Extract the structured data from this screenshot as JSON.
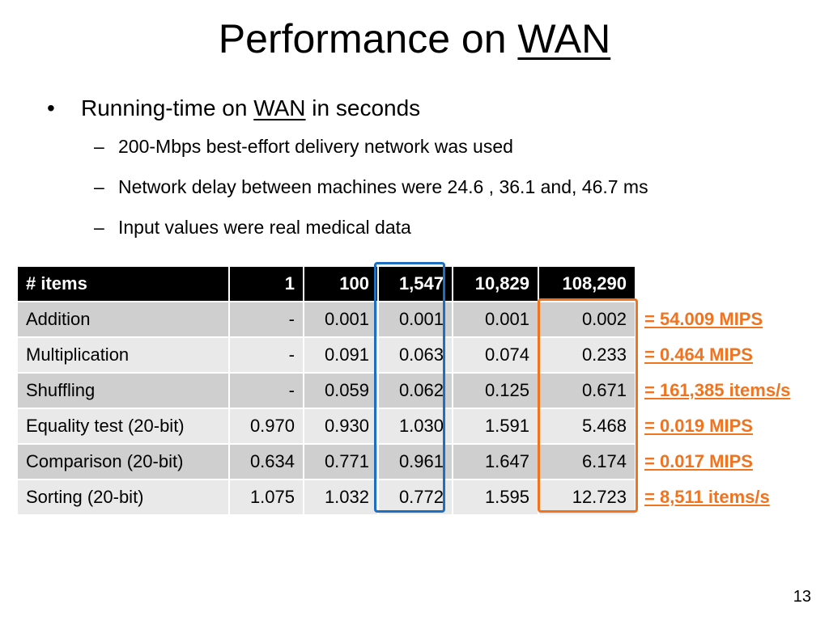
{
  "slide": {
    "title_prefix": "Performance on ",
    "title_underlined": "WAN",
    "page_number": "13"
  },
  "bullets": {
    "main": {
      "prefix": "Running-time on ",
      "underlined": "WAN",
      "suffix": " in seconds"
    },
    "sub": [
      "200-Mbps best-effort delivery network was used",
      "Network delay between machines were 24.6 , 36.1  and, 46.7 ms",
      "Input values were real medical data"
    ]
  },
  "table": {
    "headers": [
      "# items",
      "1",
      "100",
      "1,547",
      "10,829",
      "108,290"
    ],
    "rows": [
      {
        "label": "Addition",
        "values": [
          "-",
          "0.001",
          "0.001",
          "0.001",
          "0.002"
        ],
        "note": "= 54.009 MIPS"
      },
      {
        "label": "Multiplication",
        "values": [
          "-",
          "0.091",
          "0.063",
          "0.074",
          "0.233"
        ],
        "note": "= 0.464 MIPS"
      },
      {
        "label": "Shuffling",
        "values": [
          "-",
          "0.059",
          "0.062",
          "0.125",
          "0.671"
        ],
        "note": "= 161,385 items/s"
      },
      {
        "label": "Equality test (20-bit)",
        "values": [
          "0.970",
          "0.930",
          "1.030",
          "1.591",
          "5.468"
        ],
        "note": "= 0.019 MIPS"
      },
      {
        "label": "Comparison (20-bit)",
        "values": [
          "0.634",
          "0.771",
          "0.961",
          "1.647",
          "6.174"
        ],
        "note": "= 0.017 MIPS"
      },
      {
        "label": "Sorting (20-bit)",
        "values": [
          "1.075",
          "1.032",
          "0.772",
          "1.595",
          "12.723"
        ],
        "note": "= 8,511 items/s"
      }
    ]
  },
  "colors": {
    "highlight_column_1547": "#1e6fc0",
    "highlight_column_108290": "#f07320",
    "note_text": "#f07320",
    "header_bg": "#000000"
  }
}
